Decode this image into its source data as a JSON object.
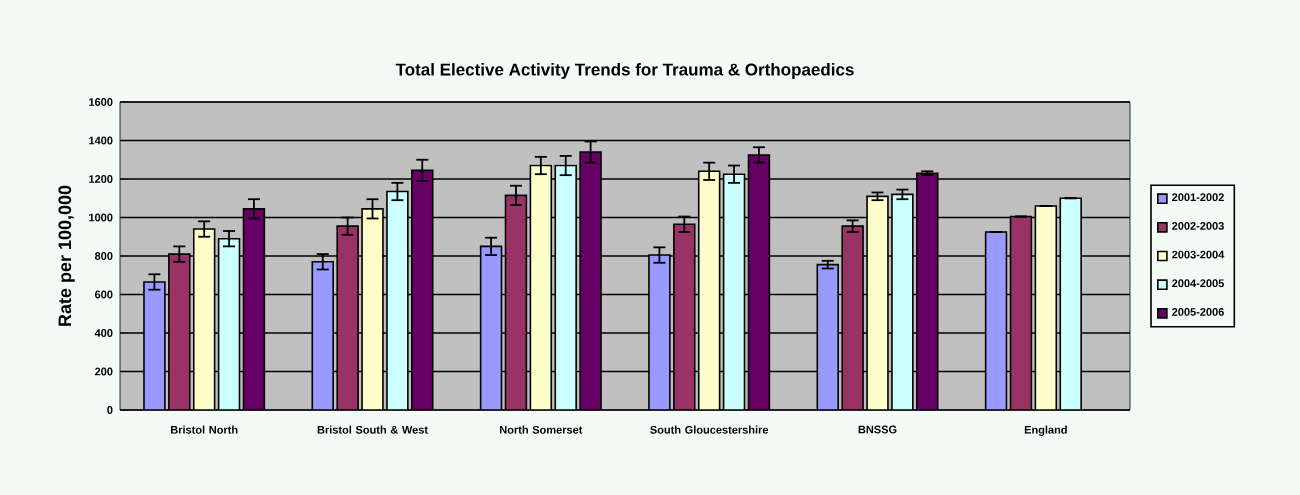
{
  "chart_data": {
    "type": "bar",
    "title": "Total Elective Activity Trends for Trauma & Orthopaedics",
    "ylabel": "Rate per 100,000",
    "categories": [
      "Bristol North",
      "Bristol South & West",
      "North Somerset",
      "South Gloucestershire",
      "BNSSG",
      "England"
    ],
    "series": [
      {
        "name": "2001-2002",
        "color": "#9999ff",
        "values": [
          665,
          770,
          850,
          805,
          755,
          925
        ],
        "errors": [
          40,
          40,
          45,
          40,
          20,
          null
        ]
      },
      {
        "name": "2002-2003",
        "color": "#993366",
        "values": [
          810,
          955,
          1115,
          965,
          955,
          1005
        ],
        "errors": [
          40,
          45,
          50,
          40,
          30,
          null
        ]
      },
      {
        "name": "2003-2004",
        "color": "#ffffcc",
        "values": [
          940,
          1045,
          1270,
          1240,
          1110,
          1060
        ],
        "errors": [
          40,
          50,
          45,
          45,
          20,
          null
        ]
      },
      {
        "name": "2004-2005",
        "color": "#ccffff",
        "values": [
          890,
          1135,
          1270,
          1225,
          1120,
          1100
        ],
        "errors": [
          40,
          45,
          50,
          45,
          25,
          null
        ]
      },
      {
        "name": "2005-2006",
        "color": "#660066",
        "values": [
          1045,
          1245,
          1340,
          1325,
          1230,
          null
        ],
        "errors": [
          50,
          55,
          55,
          40,
          10,
          null
        ]
      }
    ],
    "ylim": [
      0,
      1600
    ],
    "yticks": [
      0,
      200,
      400,
      600,
      800,
      1000,
      1200,
      1400,
      1600
    ],
    "grid": "y",
    "legend": "right"
  }
}
